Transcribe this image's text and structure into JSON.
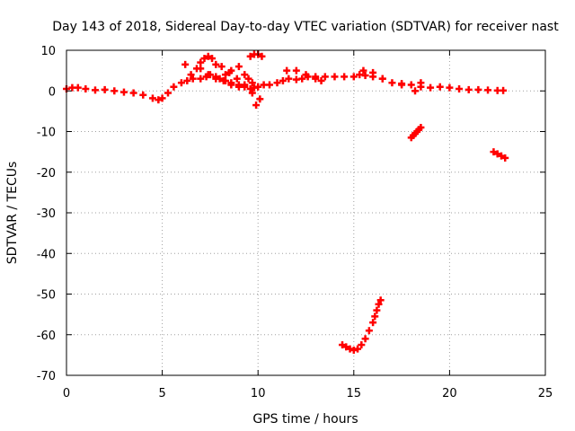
{
  "chart_data": {
    "type": "scatter",
    "title": "Day 143 of 2018, Sidereal Day-to-day VTEC variation (SDTVAR) for receiver nast",
    "xlabel": "GPS time / hours",
    "ylabel": "SDTVAR / TECUs",
    "xlim": [
      0,
      25
    ],
    "ylim": [
      -70,
      10
    ],
    "xticks": [
      0,
      5,
      10,
      15,
      20,
      25
    ],
    "yticks": [
      10,
      0,
      -10,
      -20,
      -30,
      -40,
      -50,
      -60,
      -70
    ],
    "grid": true,
    "marker": "+",
    "color": "#ff0000",
    "series": [
      {
        "name": "SDTVAR",
        "x": [
          0.0,
          0.3,
          0.6,
          1.0,
          1.5,
          2.0,
          2.5,
          3.0,
          3.5,
          4.0,
          4.5,
          4.8,
          5.0,
          5.3,
          5.6,
          6.0,
          6.3,
          6.6,
          7.0,
          7.3,
          7.5,
          7.8,
          8.0,
          8.3,
          8.6,
          9.0,
          9.3,
          9.6,
          9.8,
          10.0,
          10.3,
          10.6,
          11.0,
          11.3,
          11.6,
          12.0,
          12.3,
          12.6,
          13.0,
          13.5,
          14.0,
          14.5,
          15.0,
          15.3,
          15.6,
          16.0,
          16.5,
          17.0,
          17.5,
          18.0,
          18.5,
          19.0,
          19.5,
          20.0,
          20.5,
          21.0,
          21.5,
          22.0,
          22.5,
          22.8,
          6.2,
          6.5,
          6.8,
          7.0,
          7.2,
          7.4,
          7.6,
          7.8,
          8.1,
          8.5,
          8.9,
          9.3,
          9.7,
          9.9,
          10.1,
          7.0,
          7.4,
          7.8,
          8.2,
          8.6,
          9.0,
          8.3,
          8.6,
          9.0,
          9.6,
          9.8,
          10.0,
          10.2,
          9.3,
          9.5,
          9.7,
          11.5,
          12.0,
          12.5,
          13.0,
          13.3,
          15.5,
          16.0,
          16.5,
          17.5,
          18.2,
          18.5,
          18.0,
          18.1,
          18.2,
          18.3,
          18.4,
          18.5,
          22.3,
          22.5,
          22.7,
          22.9,
          14.4,
          14.6,
          14.8,
          15.0,
          15.2,
          15.4,
          15.6,
          15.8,
          16.0,
          16.1,
          16.2,
          16.3,
          16.4
        ],
        "y": [
          0.5,
          0.8,
          0.8,
          0.5,
          0.2,
          0.3,
          0.0,
          -0.3,
          -0.5,
          -1.0,
          -1.8,
          -2.2,
          -1.8,
          -0.5,
          1.0,
          2.0,
          2.5,
          3.0,
          3.0,
          3.5,
          4.0,
          3.5,
          3.0,
          2.5,
          2.0,
          1.5,
          1.0,
          0.5,
          0.8,
          1.0,
          1.5,
          1.5,
          2.0,
          2.5,
          3.0,
          2.8,
          3.0,
          3.5,
          3.5,
          3.5,
          3.5,
          3.5,
          3.5,
          4.0,
          3.8,
          3.5,
          3.0,
          2.0,
          1.8,
          1.5,
          1.0,
          0.8,
          1.0,
          0.8,
          0.5,
          0.3,
          0.3,
          0.2,
          0.1,
          0.1,
          6.5,
          4.0,
          5.5,
          7.0,
          8.0,
          8.5,
          8.0,
          6.5,
          6.0,
          4.5,
          3.0,
          1.5,
          -0.5,
          -3.5,
          -2.0,
          5.5,
          4.0,
          3.0,
          2.5,
          1.5,
          1.0,
          4.0,
          5.0,
          6.0,
          8.5,
          9.0,
          9.0,
          8.5,
          4.0,
          3.0,
          2.0,
          5.0,
          5.0,
          4.0,
          3.0,
          2.5,
          5.0,
          4.5,
          3.0,
          1.5,
          0.0,
          2.0,
          -11.5,
          -11.0,
          -10.5,
          -10.0,
          -9.5,
          -9.0,
          -15.0,
          -15.5,
          -16.0,
          -16.5,
          -62.5,
          -63.0,
          -63.5,
          -63.8,
          -63.5,
          -62.5,
          -61.0,
          -59.0,
          -57.0,
          -55.5,
          -54.0,
          -52.5,
          -51.5
        ]
      }
    ]
  }
}
